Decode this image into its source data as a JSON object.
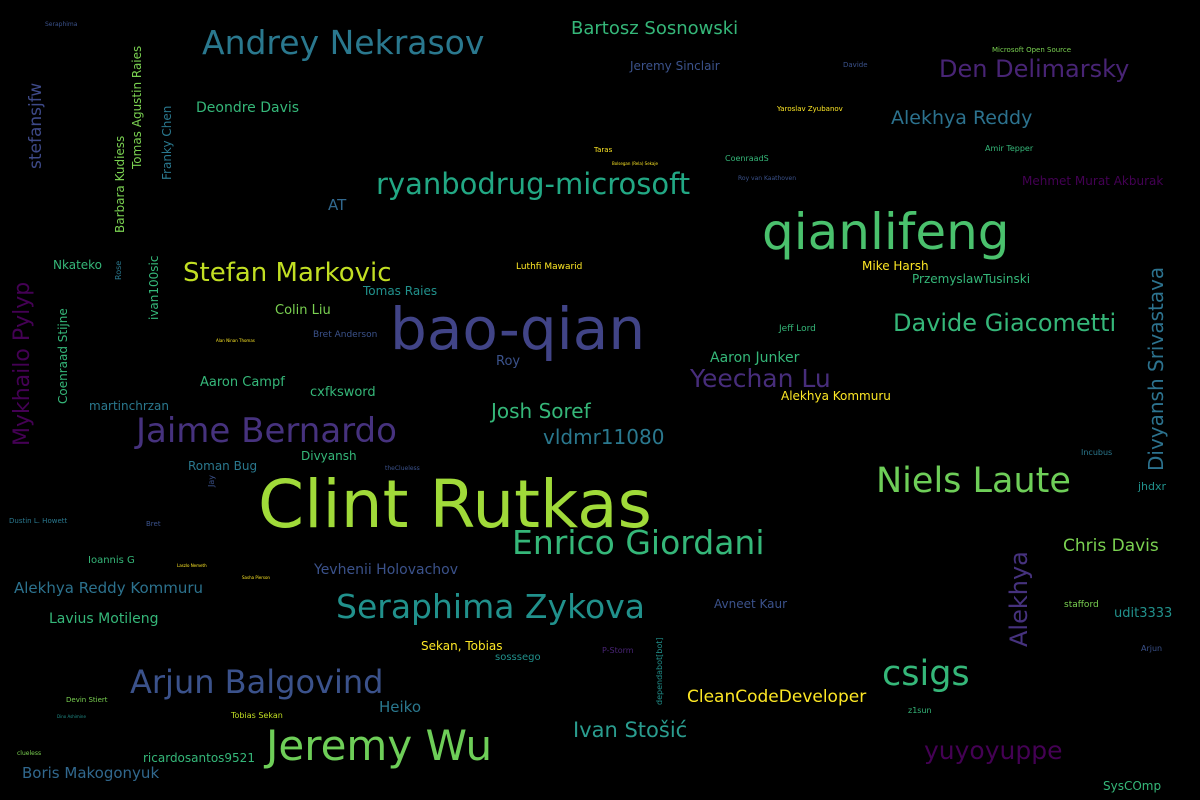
{
  "words": [
    {
      "text": "Clint Rutkas",
      "color": "#a0da39"
    },
    {
      "text": "bao-qian",
      "color": "#414487"
    },
    {
      "text": "qianlifeng",
      "color": "#4ac16d"
    },
    {
      "text": "Jeremy Wu",
      "color": "#6ece58"
    },
    {
      "text": "Andrey Nekrasov",
      "color": "#2a788e"
    },
    {
      "text": "ryanbodrug-microsoft",
      "color": "#22a884"
    },
    {
      "text": "Jaime Bernardo",
      "color": "#46327e"
    },
    {
      "text": "Seraphima Zykova",
      "color": "#21918c"
    },
    {
      "text": "Enrico Giordani",
      "color": "#35b779"
    },
    {
      "text": "Niels Laute",
      "color": "#6ece58"
    },
    {
      "text": "Arjun Balgovind",
      "color": "#3b528b"
    },
    {
      "text": "csigs",
      "color": "#35b779"
    },
    {
      "text": "Stefan Markovic",
      "color": "#c2df23"
    },
    {
      "text": "Davide Giacometti",
      "color": "#35b779"
    },
    {
      "text": "Yeechan Lu",
      "color": "#472d7b"
    },
    {
      "text": "yuyoyuppe",
      "color": "#440154"
    },
    {
      "text": "Den Delimarsky",
      "color": "#482475"
    },
    {
      "text": "Bartosz Sosnowski",
      "color": "#35b779"
    },
    {
      "text": "Divyansh Srivastava",
      "color": "#2c728e"
    },
    {
      "text": "Mykhailo Pylyp",
      "color": "#440154"
    },
    {
      "text": "Alekhya",
      "color": "#46327e"
    },
    {
      "text": "Ivan Stošić",
      "color": "#2a9d8f"
    },
    {
      "text": "Alekhya Reddy",
      "color": "#2c728e"
    },
    {
      "text": "Josh Soref",
      "color": "#35b779"
    },
    {
      "text": "vldmr11080",
      "color": "#2a788e"
    },
    {
      "text": "Chris Davis",
      "color": "#7ad151"
    },
    {
      "text": "CleanCodeDeveloper",
      "color": "#fde725"
    },
    {
      "text": "stefansjfw",
      "color": "#3e4a89"
    },
    {
      "text": "Alekhya Reddy Kommuru",
      "color": "#2c728e"
    },
    {
      "text": "Boris Makogonyuk",
      "color": "#31688e"
    },
    {
      "text": "Deondre Davis",
      "color": "#35b779"
    },
    {
      "text": "Lavius Motileng",
      "color": "#35b779"
    },
    {
      "text": "Heiko",
      "color": "#2a788e"
    },
    {
      "text": "Aaron Junker",
      "color": "#35b779"
    },
    {
      "text": "Colin Liu",
      "color": "#7ad151"
    },
    {
      "text": "Aaron Campf",
      "color": "#35b779"
    },
    {
      "text": "cxfksword",
      "color": "#35b779"
    },
    {
      "text": "Jeremy Sinclair",
      "color": "#3b528b"
    },
    {
      "text": "Yevhenii Holovachov",
      "color": "#3b528b"
    },
    {
      "text": "Avneet Kaur",
      "color": "#3b528b"
    },
    {
      "text": "udit3333",
      "color": "#21918c"
    },
    {
      "text": "Tomas Raies",
      "color": "#21918c"
    },
    {
      "text": "Roman Bug",
      "color": "#2a788e"
    },
    {
      "text": "martinchrzan",
      "color": "#2a788e"
    },
    {
      "text": "Divyansh",
      "color": "#35b779"
    },
    {
      "text": "Mehmet Murat Akburak",
      "color": "#440154"
    },
    {
      "text": "PrzemyslawTusinski",
      "color": "#35b779"
    },
    {
      "text": "Alekhya Kommuru",
      "color": "#fde725"
    },
    {
      "text": "Mike Harsh",
      "color": "#fde725"
    },
    {
      "text": "Sekan, Tobias",
      "color": "#fde725"
    },
    {
      "text": "ricardosantos9521",
      "color": "#35b779"
    },
    {
      "text": "SysCOmp",
      "color": "#35b779"
    },
    {
      "text": "AT",
      "color": "#31688e"
    },
    {
      "text": "Roy",
      "color": "#3b528b"
    },
    {
      "text": "Nkateko",
      "color": "#35b779"
    },
    {
      "text": "Tomas Agustin Raies",
      "color": "#7ad151"
    },
    {
      "text": "Barbara Kudiess",
      "color": "#7ad151"
    },
    {
      "text": "Franky Chen",
      "color": "#2a788e"
    },
    {
      "text": "ivan100sic",
      "color": "#35b779"
    },
    {
      "text": "Coenraad Stijne",
      "color": "#35b779"
    },
    {
      "text": "Ioannis G",
      "color": "#35b779"
    },
    {
      "text": "sosssego",
      "color": "#21918c"
    },
    {
      "text": "Jeff Lord",
      "color": "#35b779"
    },
    {
      "text": "stafford",
      "color": "#7ad151"
    },
    {
      "text": "jhdxr",
      "color": "#21918c"
    },
    {
      "text": "Luthfi Mawarid",
      "color": "#fde725"
    },
    {
      "text": "Bret Anderson",
      "color": "#3b528b"
    },
    {
      "text": "Tobias Sekan",
      "color": "#c2df23"
    },
    {
      "text": "Amir Tepper",
      "color": "#35b779"
    },
    {
      "text": "z1sun",
      "color": "#35b779"
    },
    {
      "text": "Incubus",
      "color": "#2a788e"
    },
    {
      "text": "Arjun",
      "color": "#3b528b"
    },
    {
      "text": "Devin Stiert",
      "color": "#7ad151"
    },
    {
      "text": "Dustin L. Howett",
      "color": "#2a788e"
    },
    {
      "text": "Bret",
      "color": "#3b528b"
    },
    {
      "text": "Rose",
      "color": "#2a788e"
    },
    {
      "text": "Jay",
      "color": "#3b528b"
    },
    {
      "text": "dependabot[bot]",
      "color": "#21918c"
    },
    {
      "text": "P-Storm",
      "color": "#482475"
    },
    {
      "text": "Yaroslav Zyubanov",
      "color": "#fde725"
    },
    {
      "text": "Microsoft Open Source",
      "color": "#7ad151"
    },
    {
      "text": "Davide",
      "color": "#3b528b"
    },
    {
      "text": "Taras",
      "color": "#fde725"
    },
    {
      "text": "CoenraadS",
      "color": "#35b779"
    },
    {
      "text": "Roy van Kaathoven",
      "color": "#3b528b"
    },
    {
      "text": "Seraphima",
      "color": "#3b528b"
    },
    {
      "text": "clueless",
      "color": "#7ad151"
    },
    {
      "text": "Alan Ninan Thomas",
      "color": "#fde725"
    },
    {
      "text": "Laszlo Nemeth",
      "color": "#fde725"
    },
    {
      "text": "Sasha Pierson",
      "color": "#fde725"
    },
    {
      "text": "theClueless",
      "color": "#3b528b"
    },
    {
      "text": "Bolsegan (Rela) Sekaje",
      "color": "#fde725"
    },
    {
      "text": "Dino Ashimine",
      "color": "#21918c"
    }
  ]
}
